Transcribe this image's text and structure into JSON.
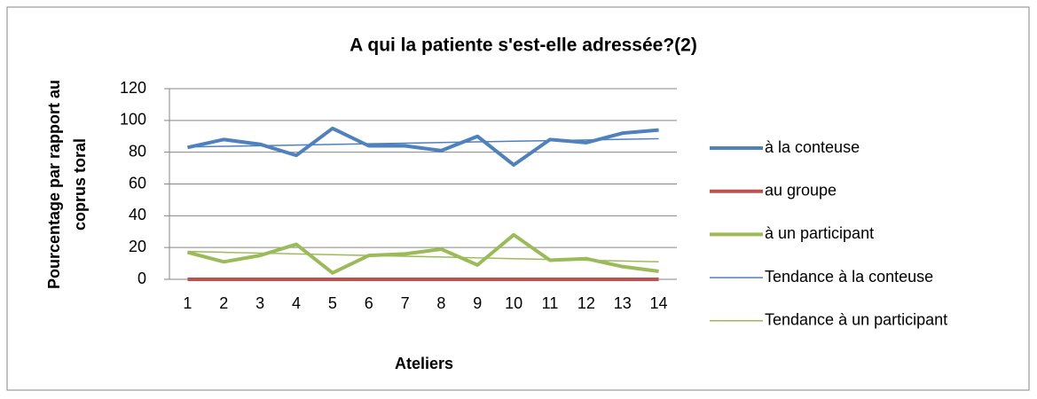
{
  "chart_data": {
    "type": "line",
    "title": "A qui la patiente s'est-elle adressée?(2)",
    "x_label": "Ateliers",
    "y_label": [
      "Pourcentage par rapport au",
      "coprus toral"
    ],
    "categories": [
      "1",
      "2",
      "3",
      "4",
      "5",
      "6",
      "7",
      "8",
      "9",
      "10",
      "11",
      "12",
      "13",
      "14"
    ],
    "series": [
      {
        "name": "à la conteuse",
        "color": "#4f81bd",
        "width": 4,
        "values": [
          83,
          88,
          85,
          78,
          95,
          84,
          84,
          81,
          90,
          72,
          88,
          86,
          92,
          94
        ]
      },
      {
        "name": "au groupe",
        "color": "#c0504d",
        "width": 4,
        "values": [
          0,
          0,
          0,
          0,
          0,
          0,
          0,
          0,
          0,
          0,
          0,
          0,
          0,
          0
        ]
      },
      {
        "name": "à un participant",
        "color": "#9bbb59",
        "width": 4,
        "values": [
          17,
          11,
          15,
          22,
          4,
          15,
          16,
          19,
          9,
          28,
          12,
          13,
          8,
          5
        ]
      },
      {
        "name": "Tendance à la conteuse",
        "color": "#4f81bd",
        "width": 1.5,
        "values": [
          83.3,
          83.7,
          84.1,
          84.5,
          84.9,
          85.3,
          85.7,
          86.1,
          86.5,
          86.9,
          87.3,
          87.7,
          88.1,
          88.5
        ]
      },
      {
        "name": "Tendance à un participant",
        "color": "#9bbb59",
        "width": 1.5,
        "values": [
          17.5,
          17,
          16.5,
          16,
          15.5,
          15,
          14.5,
          14,
          13.5,
          13,
          12.5,
          12,
          11.5,
          11
        ]
      }
    ],
    "ylim": [
      0,
      120
    ],
    "yticks": [
      0,
      20,
      40,
      60,
      80,
      100,
      120
    ],
    "grid": true,
    "legend": "right"
  }
}
